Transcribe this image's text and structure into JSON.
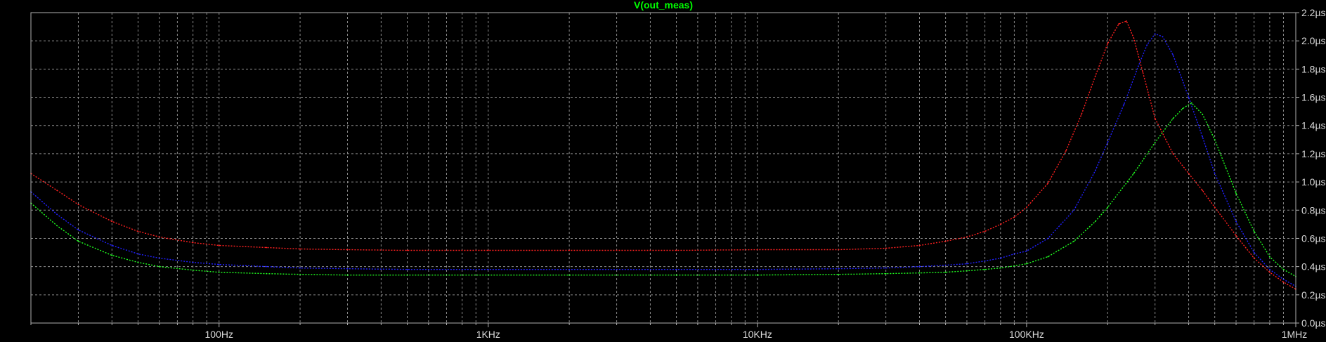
{
  "window": {
    "background_color": "#000000",
    "axis_color": "#b0b0b0",
    "grid_color": "#8a8a8a",
    "label_color": "#d8d8d8"
  },
  "chart_data": {
    "type": "line",
    "title": "V(out_meas)",
    "title_color": "#00ff00",
    "x_scale": "log",
    "xlim": [
      20,
      1000000
    ],
    "ylim": [
      0,
      2.2
    ],
    "y_unit": "µs",
    "grid": true,
    "grid_style": "dashed",
    "x_ticks": [
      {
        "value": 100,
        "label": "100Hz"
      },
      {
        "value": 1000,
        "label": "1KHz"
      },
      {
        "value": 10000,
        "label": "10KHz"
      },
      {
        "value": 100000,
        "label": "100KHz"
      },
      {
        "value": 1000000,
        "label": "1MHz"
      }
    ],
    "y_ticks": [
      {
        "value": 0.0,
        "label": "0.0µs"
      },
      {
        "value": 0.2,
        "label": "0.2µs"
      },
      {
        "value": 0.4,
        "label": "0.4µs"
      },
      {
        "value": 0.6,
        "label": "0.6µs"
      },
      {
        "value": 0.8,
        "label": "0.8µs"
      },
      {
        "value": 1.0,
        "label": "1.0µs"
      },
      {
        "value": 1.2,
        "label": "1.2µs"
      },
      {
        "value": 1.4,
        "label": "1.4µs"
      },
      {
        "value": 1.6,
        "label": "1.6µs"
      },
      {
        "value": 1.8,
        "label": "1.8µs"
      },
      {
        "value": 2.0,
        "label": "2.0µs"
      },
      {
        "value": 2.2,
        "label": "2.2µs"
      }
    ],
    "series": [
      {
        "color": "#ff2020",
        "x": [
          20,
          25,
          30,
          40,
          50,
          60,
          80,
          100,
          150,
          200,
          300,
          500,
          1000,
          2000,
          5000,
          10000,
          20000,
          30000,
          40000,
          50000,
          60000,
          70000,
          80000,
          90000,
          100000,
          120000,
          140000,
          160000,
          180000,
          200000,
          220000,
          235000,
          250000,
          270000,
          300000,
          350000,
          400000,
          450000,
          500000,
          600000,
          700000,
          800000,
          900000,
          1000000
        ],
        "y": [
          1.06,
          0.94,
          0.84,
          0.72,
          0.65,
          0.61,
          0.57,
          0.55,
          0.535,
          0.525,
          0.52,
          0.515,
          0.515,
          0.515,
          0.515,
          0.52,
          0.52,
          0.53,
          0.55,
          0.58,
          0.61,
          0.65,
          0.7,
          0.75,
          0.82,
          0.99,
          1.22,
          1.48,
          1.75,
          1.98,
          2.12,
          2.14,
          2.02,
          1.78,
          1.45,
          1.2,
          1.06,
          0.94,
          0.82,
          0.62,
          0.46,
          0.36,
          0.29,
          0.24
        ]
      },
      {
        "color": "#2020ff",
        "x": [
          20,
          25,
          30,
          40,
          50,
          60,
          80,
          100,
          150,
          200,
          300,
          500,
          1000,
          2000,
          5000,
          10000,
          20000,
          30000,
          40000,
          50000,
          60000,
          70000,
          80000,
          90000,
          100000,
          120000,
          150000,
          180000,
          200000,
          230000,
          260000,
          280000,
          300000,
          320000,
          350000,
          400000,
          450000,
          500000,
          600000,
          700000,
          800000,
          900000,
          1000000
        ],
        "y": [
          0.93,
          0.77,
          0.66,
          0.55,
          0.49,
          0.46,
          0.43,
          0.415,
          0.4,
          0.39,
          0.385,
          0.38,
          0.38,
          0.38,
          0.38,
          0.38,
          0.385,
          0.39,
          0.4,
          0.41,
          0.42,
          0.44,
          0.46,
          0.49,
          0.51,
          0.6,
          0.8,
          1.08,
          1.28,
          1.55,
          1.82,
          1.97,
          2.05,
          2.03,
          1.9,
          1.6,
          1.32,
          1.06,
          0.72,
          0.5,
          0.38,
          0.31,
          0.26
        ]
      },
      {
        "color": "#20ff20",
        "x": [
          20,
          25,
          30,
          40,
          50,
          60,
          80,
          100,
          150,
          200,
          300,
          500,
          1000,
          2000,
          5000,
          10000,
          20000,
          30000,
          40000,
          50000,
          60000,
          70000,
          80000,
          90000,
          100000,
          120000,
          150000,
          180000,
          200000,
          250000,
          300000,
          350000,
          380000,
          410000,
          450000,
          500000,
          550000,
          600000,
          700000,
          800000,
          900000,
          1000000
        ],
        "y": [
          0.85,
          0.69,
          0.58,
          0.48,
          0.43,
          0.4,
          0.375,
          0.36,
          0.35,
          0.345,
          0.34,
          0.34,
          0.34,
          0.34,
          0.34,
          0.34,
          0.345,
          0.35,
          0.355,
          0.36,
          0.37,
          0.38,
          0.39,
          0.405,
          0.42,
          0.47,
          0.58,
          0.72,
          0.82,
          1.06,
          1.28,
          1.45,
          1.52,
          1.56,
          1.48,
          1.3,
          1.1,
          0.92,
          0.65,
          0.47,
          0.38,
          0.33
        ]
      }
    ]
  }
}
